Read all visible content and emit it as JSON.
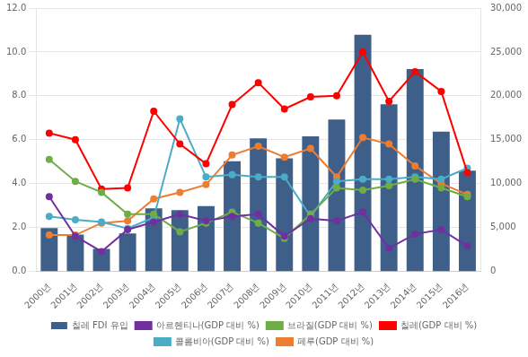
{
  "chart_data": {
    "type": "bar",
    "categories": [
      "2000년",
      "2001년",
      "2002년",
      "2003년",
      "2004년",
      "2005년",
      "2006년",
      "2007년",
      "2008년",
      "2009년",
      "2010년",
      "2011년",
      "2012년",
      "2013년",
      "2014년",
      "2015년",
      "2016년"
    ],
    "series": [
      {
        "name": "칠레 FDI 유입",
        "type": "bar",
        "axis": "y2",
        "color": "#3E5F8A",
        "values": [
          4931,
          4199,
          2550,
          4307,
          7173,
          6984,
          7426,
          12534,
          15150,
          12887,
          15373,
          17299,
          26949,
          19036,
          23044,
          15921,
          11483
        ]
      },
      {
        "name": "아르헨티나(GDP 대비 %)",
        "type": "line",
        "marker": "circle",
        "color": "#7030A0",
        "values": [
          3.4,
          1.6,
          0.9,
          1.9,
          2.25,
          2.6,
          2.3,
          2.5,
          2.6,
          1.6,
          2.4,
          2.3,
          2.7,
          1.05,
          1.7,
          1.9,
          1.15
        ]
      },
      {
        "name": "브라질(GDP 대비 %)",
        "type": "line",
        "marker": "circle",
        "color": "#70AD47",
        "values": [
          5.1,
          4.1,
          3.6,
          2.6,
          2.6,
          1.8,
          2.2,
          2.7,
          2.2,
          1.5,
          2.6,
          3.8,
          3.7,
          3.9,
          4.2,
          3.8,
          3.4
        ]
      },
      {
        "name": "칠레(GDP 대비 %)",
        "type": "line",
        "marker": "circle",
        "color": "#FF0000",
        "values": [
          6.3,
          6.0,
          3.75,
          3.8,
          7.3,
          5.8,
          4.9,
          7.6,
          8.6,
          7.4,
          7.95,
          8.0,
          10.0,
          7.75,
          9.1,
          8.2,
          4.5
        ]
      },
      {
        "name": "콜롬비아(GDP 대비 %)",
        "type": "line",
        "marker": "circle",
        "color": "#4BACC6",
        "values": [
          2.5,
          2.35,
          2.25,
          1.95,
          2.45,
          6.95,
          4.3,
          4.4,
          4.3,
          4.3,
          2.5,
          4.1,
          4.2,
          4.2,
          4.3,
          4.2,
          4.7
        ]
      },
      {
        "name": "페루(GDP 대비 %)",
        "type": "line",
        "marker": "circle",
        "color": "#ED7D31",
        "values": [
          1.65,
          1.65,
          2.2,
          2.3,
          3.3,
          3.6,
          3.95,
          5.3,
          5.7,
          5.2,
          5.6,
          4.3,
          6.1,
          5.8,
          4.8,
          4.0,
          3.5
        ]
      }
    ],
    "ylim": [
      0.0,
      12.0
    ],
    "yticks": [
      {
        "value": 0.0,
        "label": "0.0"
      },
      {
        "value": 2.0,
        "label": "2.0"
      },
      {
        "value": 4.0,
        "label": "4.0"
      },
      {
        "value": 6.0,
        "label": "6.0"
      },
      {
        "value": 8.0,
        "label": "8.0"
      },
      {
        "value": 10.0,
        "label": "10.0"
      },
      {
        "value": 12.0,
        "label": "12.0"
      }
    ],
    "y2lim": [
      0,
      30000
    ],
    "y2ticks": [
      0,
      {
        "value": 5000,
        "label": "5,000"
      },
      {
        "value": 10000,
        "label": "10,000"
      },
      {
        "value": 15000,
        "label": "15,000"
      },
      {
        "value": 20000,
        "label": "20,000"
      },
      {
        "value": 25000,
        "label": "25,000"
      },
      {
        "value": 30000,
        "label": "30,000"
      }
    ],
    "grid": true,
    "legend": "bottom"
  }
}
